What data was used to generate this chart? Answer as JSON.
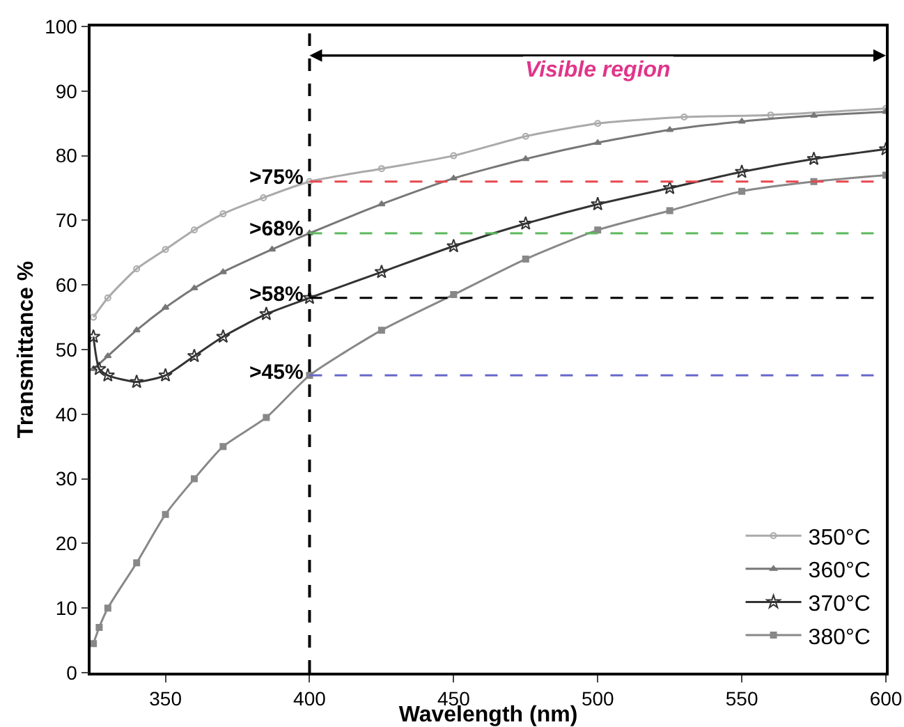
{
  "chart_data": {
    "type": "line",
    "xlabel": "Wavelength (nm)",
    "ylabel": "Transmittance %",
    "xlim": [
      324,
      600
    ],
    "xticks": [
      350,
      400,
      450,
      500,
      550,
      600
    ],
    "ylim": [
      0,
      100
    ],
    "yticks": [
      0,
      10,
      20,
      30,
      40,
      50,
      60,
      70,
      80,
      90,
      100
    ],
    "grid": false,
    "legend": "bottom right",
    "series": [
      {
        "name": "350°C",
        "color": "#aaaaaa",
        "marker": "circle",
        "x": [
          325,
          330,
          340,
          350,
          360,
          370,
          384,
          400,
          425,
          450,
          475,
          500,
          530,
          560,
          600
        ],
        "values": [
          55,
          58,
          62.5,
          65.5,
          68.5,
          71,
          73.5,
          76,
          78,
          80,
          83,
          85,
          86,
          86.3,
          87.3
        ]
      },
      {
        "name": "360°C",
        "color": "#777777",
        "marker": "triangle",
        "x": [
          325,
          330,
          340,
          350,
          360,
          370,
          387,
          400,
          425,
          450,
          475,
          500,
          525,
          550,
          575,
          600
        ],
        "values": [
          47,
          49,
          53,
          56.5,
          59.5,
          62,
          65.5,
          68,
          72.5,
          76.5,
          79.5,
          82,
          84,
          85.3,
          86.2,
          86.8
        ]
      },
      {
        "name": "370°C",
        "color": "#333333",
        "marker": "star",
        "x": [
          325,
          327,
          330,
          340,
          350,
          360,
          370,
          385,
          400,
          425,
          450,
          475,
          500,
          525,
          550,
          575,
          600
        ],
        "values": [
          52,
          47,
          46,
          45,
          46,
          49,
          52,
          55.5,
          58,
          62,
          66,
          69.5,
          72.5,
          75,
          77.5,
          79.5,
          81
        ]
      },
      {
        "name": "380°C",
        "color": "#888888",
        "marker": "square",
        "x": [
          325,
          327,
          330,
          340,
          350,
          360,
          370,
          385,
          400,
          425,
          450,
          475,
          500,
          525,
          550,
          575,
          600
        ],
        "values": [
          4.5,
          7,
          10,
          17,
          24.5,
          30,
          35,
          39.5,
          46,
          53,
          58.5,
          64,
          68.5,
          71.5,
          74.5,
          76,
          77
        ]
      }
    ],
    "ref_lines": [
      {
        "axis": "x",
        "value": 400,
        "color": "#000000",
        "line_style": "dashed"
      },
      {
        "axis": "y",
        "value": 76,
        "color": "#e8474f",
        "line_style": "dashed"
      },
      {
        "axis": "y",
        "value": 68,
        "label": ">68%",
        "color": "#5cb85c",
        "line_style": "dashed"
      },
      {
        "axis": "y",
        "value": 58,
        "label": ">58%",
        "color": "#000000",
        "line_style": "dashed"
      },
      {
        "axis": "y",
        "value": 46,
        "color": "#6666cc",
        "line_style": "dashed"
      }
    ],
    "annotations": [
      "Visible region",
      {
        "text": ">75%",
        "x": 400,
        "y": 76
      },
      {
        "text": ">45%",
        "x": 400,
        "y": 46
      }
    ]
  }
}
